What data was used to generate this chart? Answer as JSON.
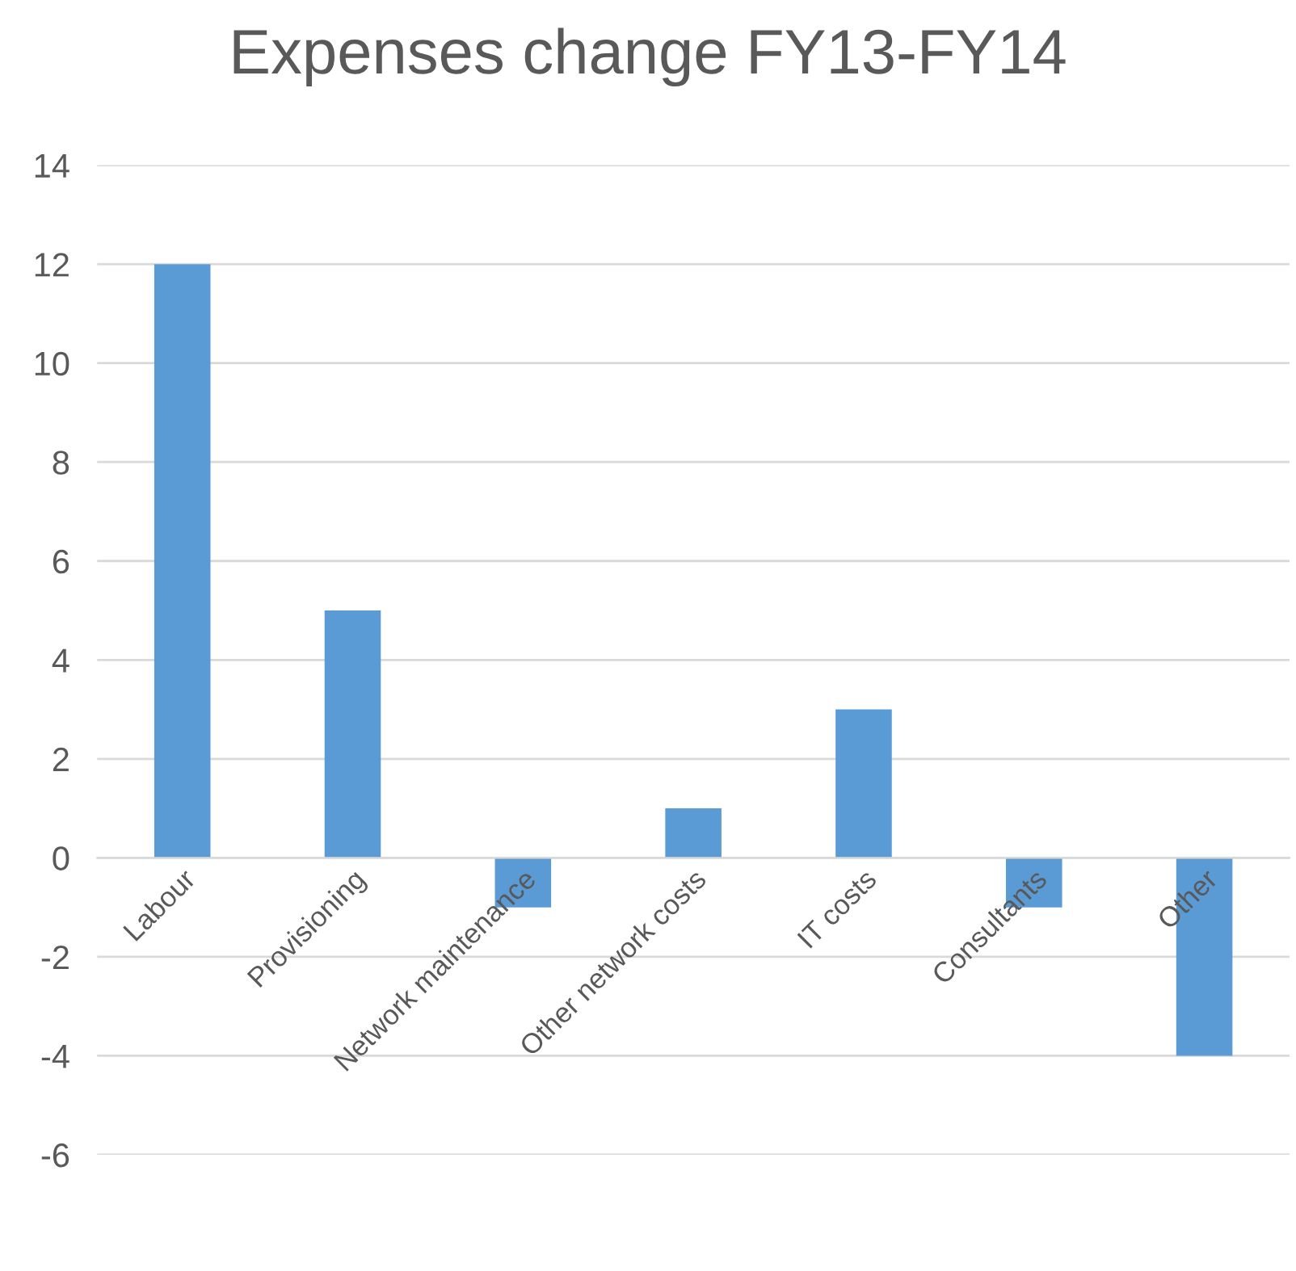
{
  "chart_data": {
    "type": "bar",
    "title": "Expenses change FY13-FY14",
    "categories": [
      "Labour",
      "Provisioning",
      "Network maintenance",
      "Other network costs",
      "IT costs",
      "Consultants",
      "Other"
    ],
    "values": [
      12,
      5,
      -1,
      1,
      3,
      -1,
      -4
    ],
    "color": "#5b9bd5",
    "ylim": [
      -6,
      14
    ],
    "yticks": [
      -6,
      -4,
      -2,
      0,
      2,
      4,
      6,
      8,
      10,
      12,
      14
    ],
    "grid": "y",
    "legend": false
  }
}
